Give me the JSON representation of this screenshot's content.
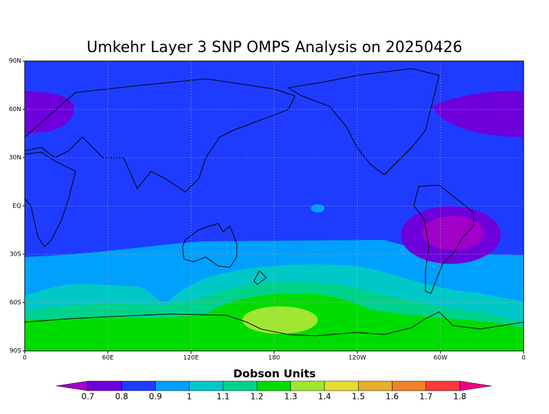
{
  "chart_data": {
    "type": "contour",
    "title": "Umkehr Layer 3 SNP OMPS Analysis on 20250426",
    "xlim": [
      0,
      360
    ],
    "xticks": [
      0,
      {
        "value": 60,
        "label": "60E"
      },
      {
        "value": 120,
        "label": "120E"
      },
      180,
      {
        "value": 240,
        "label": "120W"
      },
      {
        "value": 300,
        "label": "60W"
      },
      {
        "value": 360,
        "label": "0"
      }
    ],
    "ylim": [
      -90,
      90
    ],
    "yticks": [
      {
        "value": 90,
        "label": "90N"
      },
      {
        "value": 60,
        "label": "60N"
      },
      {
        "value": 30,
        "label": "30N"
      },
      {
        "value": 0,
        "label": "EQ"
      },
      {
        "value": -30,
        "label": "30S"
      },
      {
        "value": -60,
        "label": "60S"
      },
      {
        "value": -90,
        "label": "90S"
      }
    ],
    "grid": true,
    "colorbar": {
      "label": "Dobson Units",
      "levels": [
        0.7,
        0.8,
        0.9,
        1,
        1.1,
        1.2,
        1.3,
        1.4,
        1.5,
        1.6,
        1.7,
        1.8
      ],
      "colors": [
        "#a000c8",
        "#6e00dc",
        "#1e3cff",
        "#00a0ff",
        "#00c8c8",
        "#00d28c",
        "#00dc00",
        "#a0e632",
        "#e6dc32",
        "#e6af2d",
        "#f08228",
        "#fa3c3c",
        "#f00082"
      ]
    }
  }
}
